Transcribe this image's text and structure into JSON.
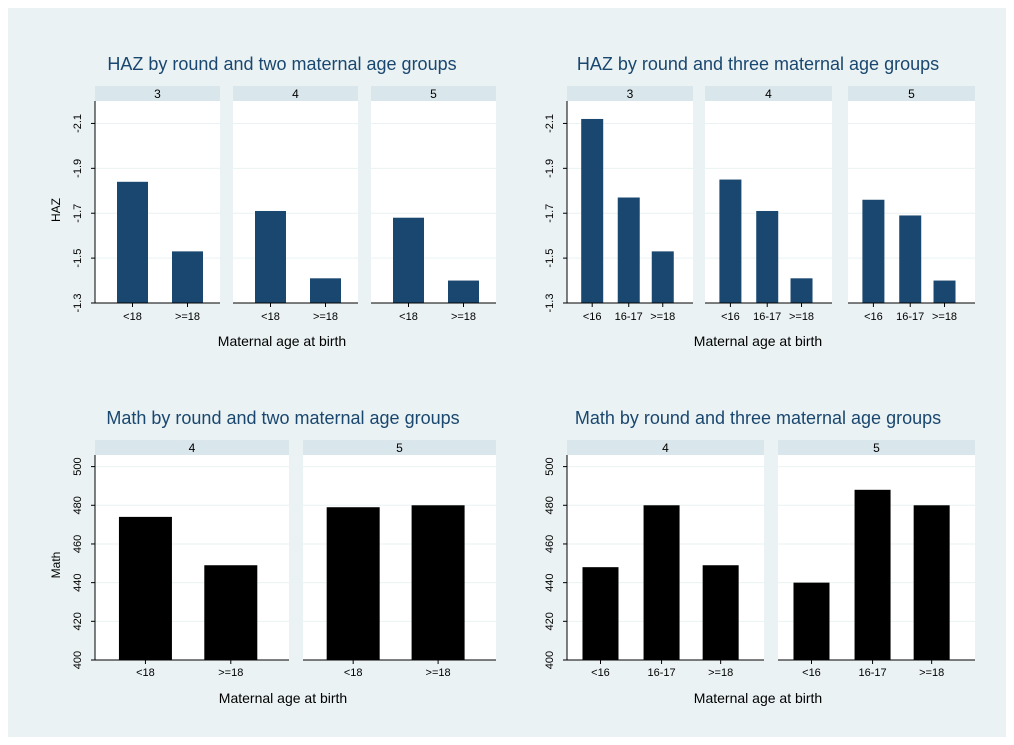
{
  "chart_data": [
    {
      "type": "bar",
      "title": "HAZ by round and two maternal age groups",
      "xlabel": "Maternal age at birth",
      "ylabel": "HAZ",
      "ylim": [
        -1.3,
        -2.2
      ],
      "reversed_y": true,
      "yticks": [
        -1.3,
        -1.5,
        -1.7,
        -1.9,
        -2.1
      ],
      "ytick_labels": [
        "-1.3",
        "-1.5",
        "-1.7",
        "-1.9",
        "-2.1"
      ],
      "categories": [
        "<18",
        ">=18"
      ],
      "bar_color": "#1a476f",
      "panels": [
        {
          "label": "3",
          "values": [
            -1.84,
            -1.53
          ]
        },
        {
          "label": "4",
          "values": [
            -1.71,
            -1.41
          ]
        },
        {
          "label": "5",
          "values": [
            -1.68,
            -1.4
          ]
        }
      ]
    },
    {
      "type": "bar",
      "title": "HAZ by round and three maternal age groups",
      "xlabel": "Maternal age at birth",
      "ylabel": "",
      "ylim": [
        -1.3,
        -2.2
      ],
      "reversed_y": true,
      "yticks": [
        -1.3,
        -1.5,
        -1.7,
        -1.9,
        -2.1
      ],
      "ytick_labels": [
        "-1.3",
        "-1.5",
        "-1.7",
        "-1.9",
        "-2.1"
      ],
      "categories": [
        "<16",
        "16-17",
        ">=18"
      ],
      "bar_color": "#1a476f",
      "panels": [
        {
          "label": "3",
          "values": [
            -2.12,
            -1.77,
            -1.53
          ]
        },
        {
          "label": "4",
          "values": [
            -1.85,
            -1.71,
            -1.41
          ]
        },
        {
          "label": "5",
          "values": [
            -1.76,
            -1.69,
            -1.4
          ]
        }
      ]
    },
    {
      "type": "bar",
      "title": "Math by round and two maternal age groups",
      "xlabel": "Maternal age at birth",
      "ylabel": "Math",
      "ylim": [
        400,
        506
      ],
      "reversed_y": false,
      "yticks": [
        400,
        420,
        440,
        460,
        480,
        500
      ],
      "ytick_labels": [
        "400",
        "420",
        "440",
        "460",
        "480",
        "500"
      ],
      "categories": [
        "<18",
        ">=18"
      ],
      "bar_color": "#000000",
      "panels": [
        {
          "label": "4",
          "values": [
            474,
            449
          ]
        },
        {
          "label": "5",
          "values": [
            479,
            480
          ]
        }
      ]
    },
    {
      "type": "bar",
      "title": "Math by round and three maternal age groups",
      "xlabel": "Maternal age at birth",
      "ylabel": "",
      "ylim": [
        400,
        506
      ],
      "reversed_y": false,
      "yticks": [
        400,
        420,
        440,
        460,
        480,
        500
      ],
      "ytick_labels": [
        "400",
        "420",
        "440",
        "460",
        "480",
        "500"
      ],
      "categories": [
        "<16",
        "16-17",
        ">=18"
      ],
      "bar_color": "#000000",
      "panels": [
        {
          "label": "4",
          "values": [
            448,
            480,
            449
          ]
        },
        {
          "label": "5",
          "values": [
            440,
            488,
            480
          ]
        }
      ]
    }
  ]
}
